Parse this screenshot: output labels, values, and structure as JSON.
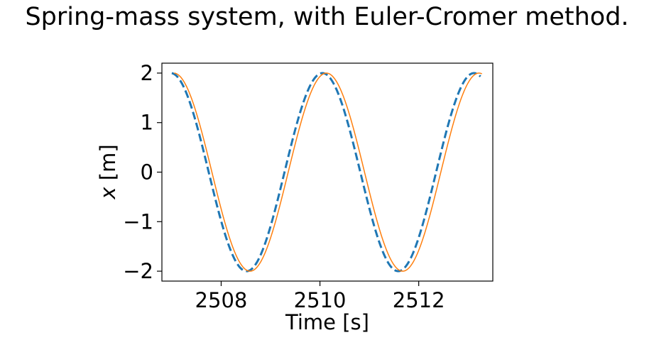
{
  "chart_data": {
    "type": "line",
    "title": "Spring-mass system, with Euler-Cromer method.",
    "xlabel": "Time [s]",
    "ylabel_var": "x",
    "ylabel_unit": "[m]",
    "xlim": [
      2506.8,
      2513.5
    ],
    "ylim": [
      -2.2,
      2.2
    ],
    "xticks": [
      2508,
      2510,
      2512
    ],
    "xtick_labels": [
      "2508",
      "2510",
      "2512"
    ],
    "yticks": [
      -2,
      -1,
      0,
      1,
      2
    ],
    "ytick_labels": [
      "−2",
      "−1",
      "0",
      "1",
      "2"
    ],
    "grid": false,
    "series": [
      {
        "style": "dashed",
        "color": "#1f77b4",
        "amplitude": 2.0,
        "period": 3.07,
        "peak_time": 2510.05,
        "x_range": [
          2507.0,
          2513.25
        ]
      },
      {
        "style": "solid",
        "color": "#ff7f0e",
        "amplitude": 2.0,
        "period": 3.09,
        "peak_time": 2510.13,
        "x_range": [
          2507.05,
          2513.28
        ]
      }
    ]
  }
}
